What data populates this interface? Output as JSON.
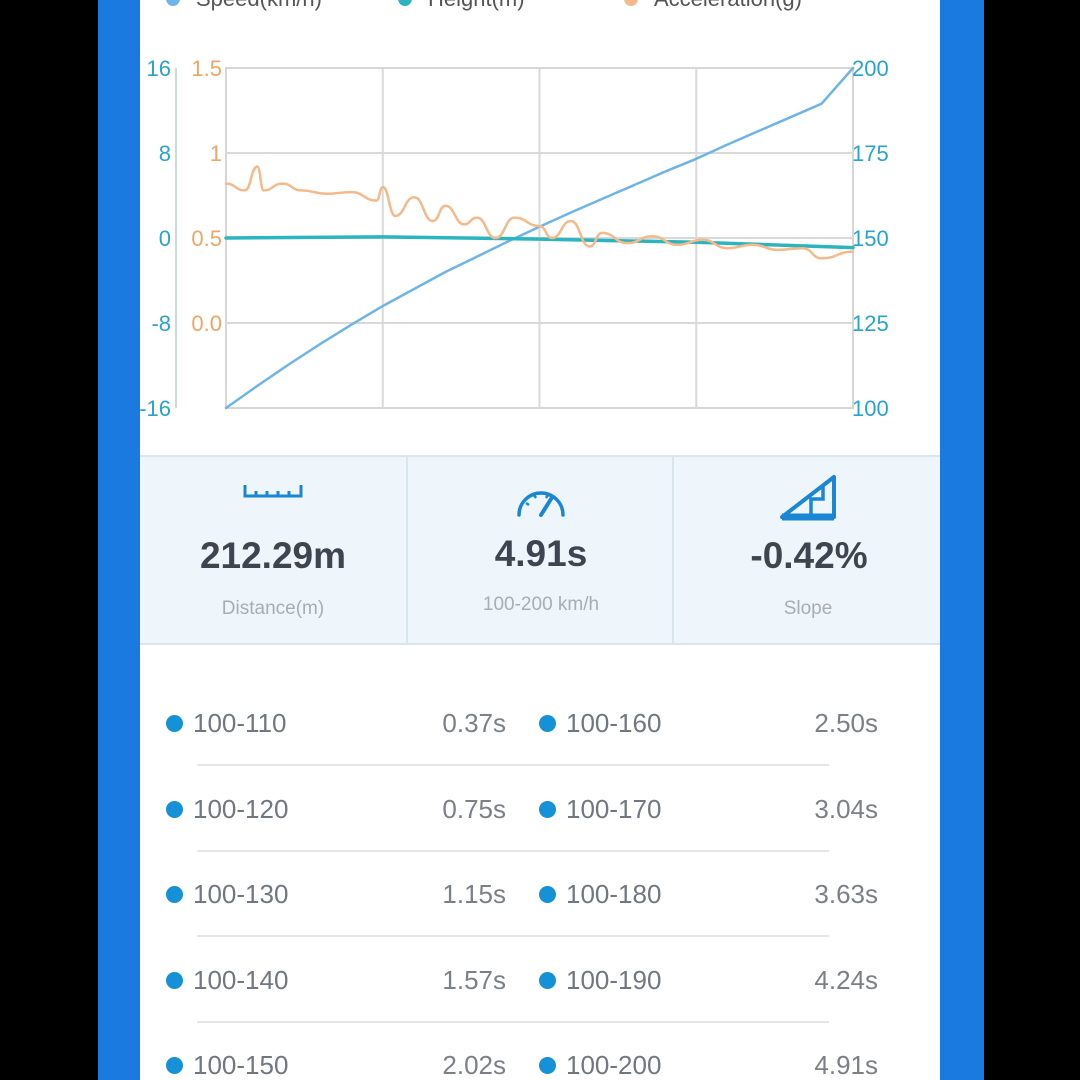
{
  "legend": [
    {
      "label": "Speed(km/h)",
      "color": "#6fb4e6"
    },
    {
      "label": "Height(m)",
      "color": "#2bb5bf"
    },
    {
      "label": "Acceleration(g)",
      "color": "#f5b98a"
    }
  ],
  "chart_data": {
    "type": "line",
    "xlabel": "",
    "axes": {
      "height_left": {
        "ticks": [
          "16",
          "8",
          "0",
          "-8",
          "-16"
        ],
        "range": [
          -16,
          16
        ],
        "color": "#2aa3cc"
      },
      "accel_left": {
        "ticks": [
          "1.5",
          "1",
          "0.5",
          "0.0"
        ],
        "range": [
          -0.5,
          1.5
        ],
        "color": "#f0a566"
      },
      "speed_right": {
        "ticks": [
          "200",
          "175",
          "150",
          "125",
          "100"
        ],
        "range": [
          100,
          200
        ],
        "color": "#2aa3cc"
      }
    },
    "grid": true,
    "series": [
      {
        "name": "Speed(km/h)",
        "axis": "speed_right",
        "color": "#6fb4e6",
        "x": [
          0,
          0.05,
          0.1,
          0.15,
          0.2,
          0.25,
          0.3,
          0.35,
          0.4,
          0.45,
          0.5,
          0.55,
          0.6,
          0.65,
          0.7,
          0.75,
          0.8,
          0.85,
          0.9,
          0.95,
          1.0
        ],
        "values": [
          100,
          106.5,
          112.8,
          118.8,
          124.5,
          130,
          135,
          140,
          144.5,
          149,
          153.3,
          157.5,
          161.5,
          165.5,
          169.5,
          173.3,
          177.5,
          181.5,
          185.5,
          189.5,
          200
        ]
      },
      {
        "name": "Height(m)",
        "axis": "height_left",
        "color": "#2bb5bf",
        "x": [
          0,
          0.25,
          0.5,
          0.75,
          1.0
        ],
        "values": [
          0,
          0.1,
          -0.1,
          -0.4,
          -0.9
        ]
      },
      {
        "name": "Acceleration(g)",
        "axis": "accel_left",
        "color": "#f5b98a",
        "x": [
          0,
          0.03,
          0.05,
          0.06,
          0.09,
          0.12,
          0.16,
          0.2,
          0.24,
          0.25,
          0.27,
          0.3,
          0.33,
          0.35,
          0.38,
          0.4,
          0.43,
          0.46,
          0.5,
          0.52,
          0.55,
          0.58,
          0.6,
          0.64,
          0.68,
          0.72,
          0.76,
          0.8,
          0.84,
          0.88,
          0.92,
          0.95,
          1.0
        ],
        "values": [
          0.82,
          0.78,
          0.92,
          0.78,
          0.82,
          0.78,
          0.76,
          0.77,
          0.72,
          0.8,
          0.63,
          0.74,
          0.6,
          0.69,
          0.58,
          0.62,
          0.5,
          0.62,
          0.57,
          0.5,
          0.6,
          0.45,
          0.53,
          0.47,
          0.51,
          0.46,
          0.49,
          0.44,
          0.46,
          0.43,
          0.44,
          0.38,
          0.42
        ]
      }
    ]
  },
  "stats": [
    {
      "value": "212.29m",
      "label": "Distance(m)",
      "icon": "ruler-icon"
    },
    {
      "value": "4.91s",
      "label": "100-200 km/h",
      "icon": "speedometer-icon"
    },
    {
      "value": "-0.42%",
      "label": "Slope",
      "icon": "slope-icon"
    }
  ],
  "splits": [
    {
      "left_range": "100-110",
      "left_time": "0.37s",
      "right_range": "100-160",
      "right_time": "2.50s"
    },
    {
      "left_range": "100-120",
      "left_time": "0.75s",
      "right_range": "100-170",
      "right_time": "3.04s"
    },
    {
      "left_range": "100-130",
      "left_time": "1.15s",
      "right_range": "100-180",
      "right_time": "3.63s"
    },
    {
      "left_range": "100-140",
      "left_time": "1.57s",
      "right_range": "100-190",
      "right_time": "4.24s"
    },
    {
      "left_range": "100-150",
      "left_time": "2.02s",
      "right_range": "100-200",
      "right_time": "4.91s"
    }
  ]
}
